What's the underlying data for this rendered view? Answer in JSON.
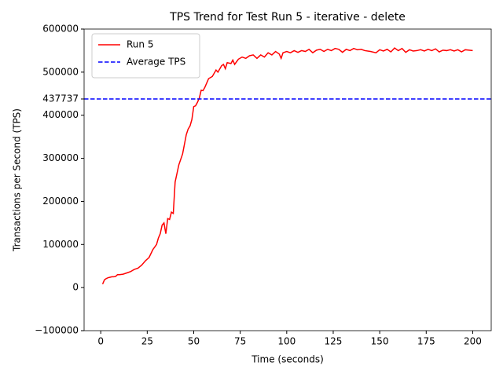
{
  "chart_data": {
    "type": "line",
    "title": "TPS Trend for Test Run 5 - iterative - delete",
    "x_label": "Time (seconds)",
    "y_label": "Transactions per Second (TPS)",
    "x": [
      1,
      2,
      3,
      4,
      5,
      6,
      7,
      8,
      9,
      10,
      12,
      14,
      16,
      18,
      20,
      22,
      24,
      26,
      28,
      30,
      31,
      32,
      33,
      34,
      35,
      36,
      37,
      38,
      39,
      40,
      41,
      42,
      44,
      46,
      47,
      48,
      49,
      50,
      51,
      52,
      53,
      54,
      55,
      56,
      58,
      60,
      62,
      63,
      65,
      66,
      67,
      68,
      70,
      71,
      72,
      74,
      76,
      78,
      80,
      82,
      84,
      86,
      88,
      90,
      92,
      94,
      96,
      97,
      98,
      100,
      102,
      104,
      106,
      108,
      110,
      112,
      114,
      116,
      118,
      120,
      122,
      124,
      126,
      128,
      130,
      132,
      134,
      136,
      138,
      140,
      142,
      145,
      148,
      150,
      152,
      154,
      156,
      158,
      160,
      162,
      164,
      166,
      168,
      170,
      172,
      174,
      176,
      178,
      180,
      182,
      184,
      186,
      188,
      190,
      192,
      194,
      196,
      198,
      200
    ],
    "series": [
      {
        "name": "Run 5",
        "color": "#ff0000",
        "values": [
          8000,
          18000,
          21000,
          23000,
          24000,
          25000,
          25000,
          26000,
          30000,
          30000,
          31000,
          34000,
          37000,
          42000,
          45000,
          52000,
          62000,
          70000,
          88000,
          100000,
          115000,
          125000,
          145000,
          150000,
          125000,
          160000,
          158000,
          175000,
          172000,
          245000,
          265000,
          285000,
          310000,
          355000,
          368000,
          375000,
          390000,
          420000,
          422000,
          430000,
          440000,
          458000,
          457000,
          465000,
          485000,
          490000,
          505000,
          500000,
          515000,
          518000,
          508000,
          522000,
          520000,
          528000,
          518000,
          530000,
          535000,
          532000,
          538000,
          540000,
          532000,
          540000,
          535000,
          545000,
          540000,
          548000,
          542000,
          532000,
          545000,
          548000,
          545000,
          550000,
          546000,
          550000,
          548000,
          553000,
          545000,
          551000,
          553000,
          548000,
          553000,
          550000,
          555000,
          553000,
          546000,
          553000,
          550000,
          555000,
          552000,
          553000,
          550000,
          548000,
          545000,
          552000,
          549000,
          553000,
          547000,
          556000,
          550000,
          555000,
          546000,
          552000,
          549000,
          550000,
          552000,
          549000,
          553000,
          550000,
          554000,
          547000,
          551000,
          550000,
          552000,
          549000,
          552000,
          547000,
          552000,
          551000,
          550000
        ]
      }
    ],
    "average": {
      "name": "Average TPS",
      "color": "#0000ff",
      "value": 437737
    },
    "xlim": [
      -8.95,
      209.95
    ],
    "ylim": [
      -100000,
      600000
    ],
    "xticks": [
      0,
      25,
      50,
      75,
      100,
      125,
      150,
      175,
      200
    ],
    "yticks": [
      {
        "value": -100000,
        "label": "−100000"
      },
      0,
      100000,
      200000,
      300000,
      400000,
      437737,
      500000,
      600000
    ],
    "legend": "upper left"
  }
}
